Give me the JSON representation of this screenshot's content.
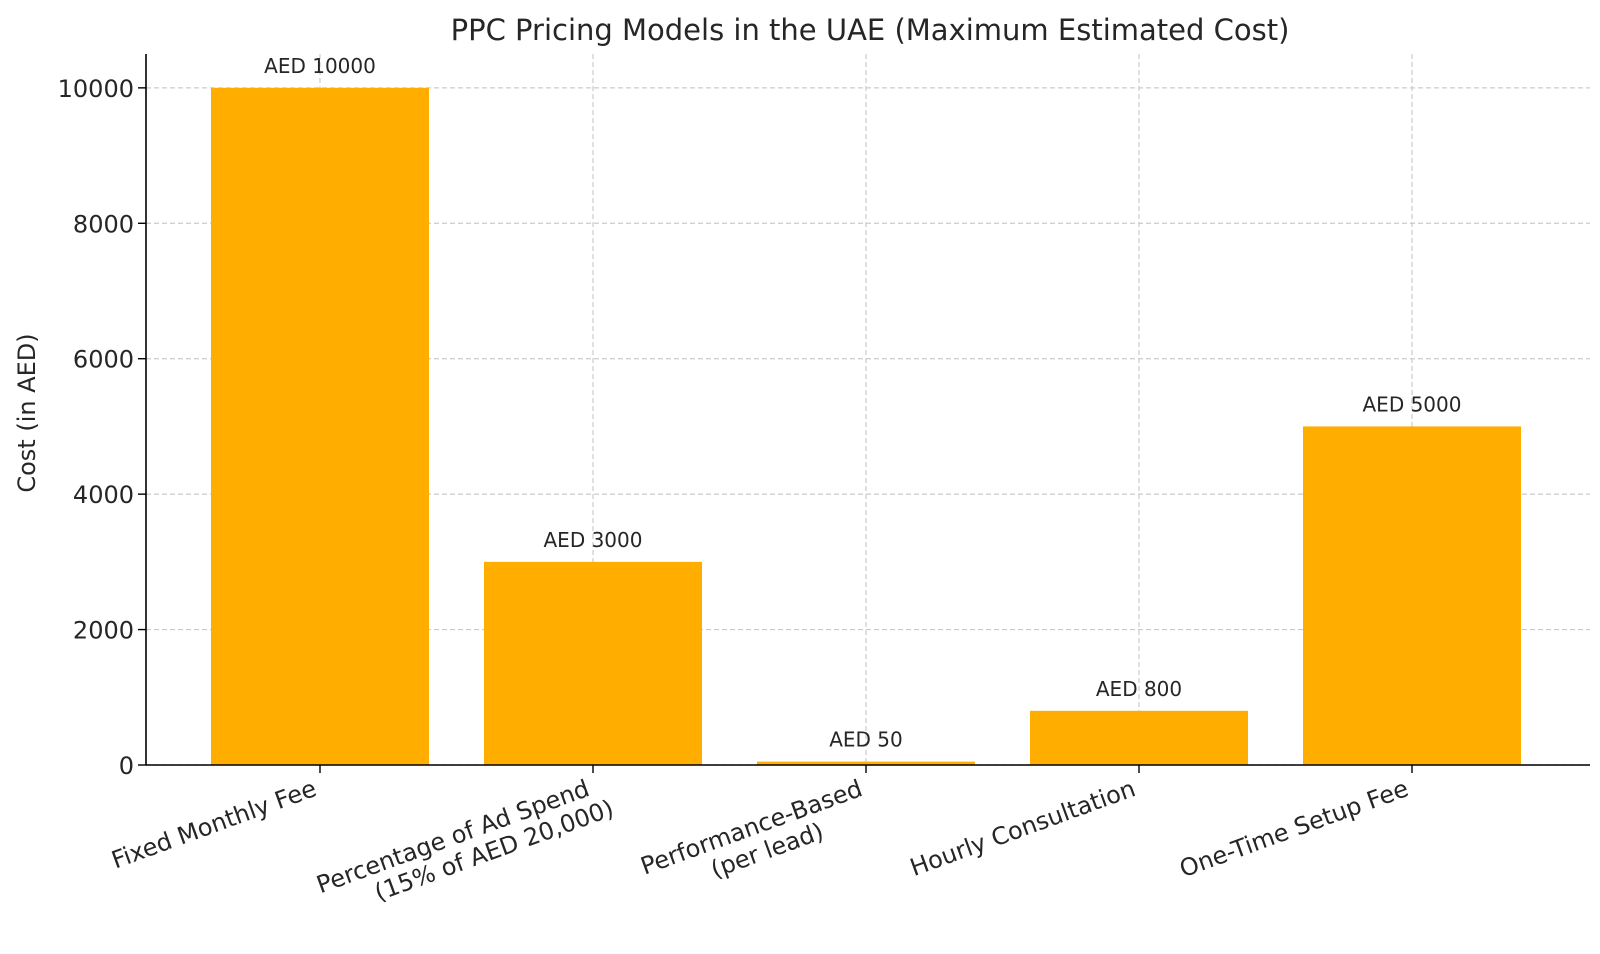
{
  "chart_data": {
    "type": "bar",
    "title": "PPC Pricing Models in the UAE (Maximum Estimated Cost)",
    "xlabel": "",
    "ylabel": "Cost (in AED)",
    "categories": [
      [
        "Fixed Monthly Fee"
      ],
      [
        "Percentage of Ad Spend",
        "(15% of AED 20,000)"
      ],
      [
        "Performance-Based",
        "(per lead)"
      ],
      [
        "Hourly Consultation"
      ],
      [
        "One-Time Setup Fee"
      ]
    ],
    "values": [
      10000,
      3000,
      50,
      800,
      5000
    ],
    "data_labels": [
      "AED 10000",
      "AED 3000",
      "AED 50",
      "AED 800",
      "AED 5000"
    ],
    "yticks": [
      0,
      2000,
      4000,
      6000,
      8000,
      10000
    ],
    "ylim": [
      0,
      10500
    ],
    "grid": true,
    "bar_color": "#FFAE00"
  }
}
